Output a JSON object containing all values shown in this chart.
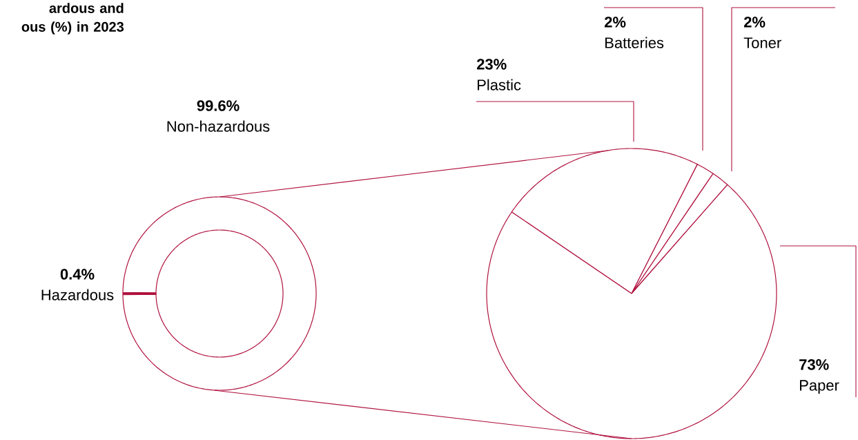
{
  "chart_data": [
    {
      "type": "donut",
      "title": "ardous and ous (%) in 2023",
      "categories": [
        "Hazardous",
        "Non-hazardous"
      ],
      "values": [
        0.4,
        99.6
      ],
      "value_labels": [
        "0.4%",
        "99.6%"
      ],
      "colors": [
        "#b0123f",
        "#ffffff"
      ]
    },
    {
      "type": "pie",
      "categories": [
        "Plastic",
        "Batteries",
        "Toner",
        "Paper"
      ],
      "values": [
        23,
        2,
        2,
        73
      ],
      "value_labels": [
        "23%",
        "2%",
        "2%",
        "73%"
      ],
      "colors": [
        "#ffffff",
        "#ffffff",
        "#ffffff",
        "#ffffff"
      ]
    }
  ]
}
